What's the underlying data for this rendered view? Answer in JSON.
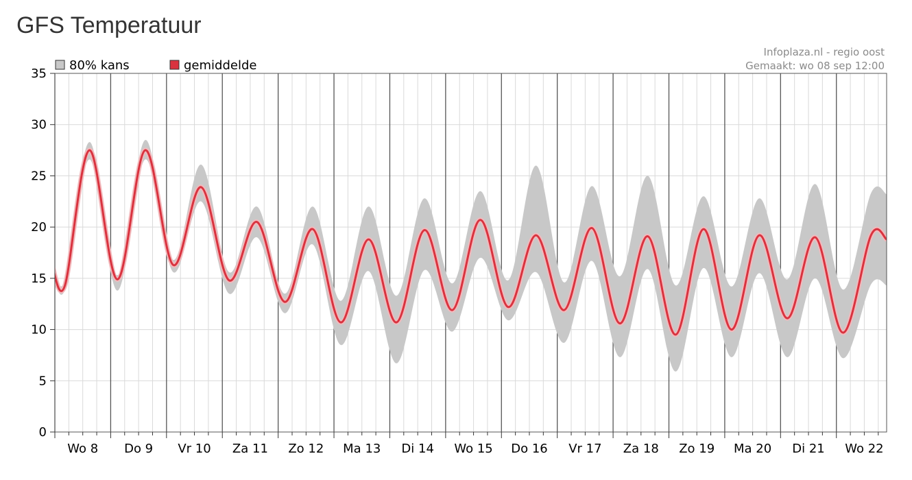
{
  "title": "GFS Temperatuur",
  "credit_line1": "Infoplaza.nl - regio oost",
  "credit_line2": "Gemaakt: wo 08 sep 12:00",
  "legend": [
    {
      "label": "80% kans",
      "color": "#c8c8c8"
    },
    {
      "label": "gemiddelde",
      "color": "#d9333f"
    }
  ],
  "chart_data": {
    "type": "area",
    "title": "GFS Temperatuur",
    "xlabel": "",
    "ylabel": "",
    "ylim": [
      0,
      35
    ],
    "yticks": [
      0,
      5,
      10,
      15,
      20,
      25,
      30,
      35
    ],
    "x_unit": "days from Wo 8 00:00",
    "xlim": [
      0,
      14.9
    ],
    "day_labels": [
      "Wo 8",
      "Do 9",
      "Vr 10",
      "Za 11",
      "Zo 12",
      "Ma 13",
      "Di 14",
      "Wo 15",
      "Do 16",
      "Vr 17",
      "Za 18",
      "Zo 19",
      "Ma 20",
      "Di 21",
      "Wo 22"
    ],
    "grid": true,
    "series": [
      {
        "name": "gemiddelde",
        "color": "#d9333f",
        "points": [
          [
            -0.05,
            16.3
          ],
          [
            0.18,
            14.3
          ],
          [
            0.62,
            27.5
          ],
          [
            1.12,
            14.9
          ],
          [
            1.62,
            27.5
          ],
          [
            2.12,
            16.3
          ],
          [
            2.62,
            23.9
          ],
          [
            3.12,
            14.8
          ],
          [
            3.62,
            20.5
          ],
          [
            4.12,
            12.7
          ],
          [
            4.62,
            19.8
          ],
          [
            5.12,
            10.7
          ],
          [
            5.62,
            18.8
          ],
          [
            6.12,
            10.7
          ],
          [
            6.62,
            19.7
          ],
          [
            7.12,
            11.9
          ],
          [
            7.62,
            20.7
          ],
          [
            8.12,
            12.2
          ],
          [
            8.62,
            19.2
          ],
          [
            9.12,
            11.9
          ],
          [
            9.62,
            19.9
          ],
          [
            10.12,
            10.6
          ],
          [
            10.62,
            19.1
          ],
          [
            11.12,
            9.5
          ],
          [
            11.62,
            19.8
          ],
          [
            12.12,
            10.0
          ],
          [
            12.62,
            19.2
          ],
          [
            13.12,
            11.1
          ],
          [
            13.62,
            19.0
          ],
          [
            14.12,
            9.7
          ],
          [
            14.62,
            19.2
          ],
          [
            14.9,
            18.8
          ]
        ]
      },
      {
        "name": "80% kans",
        "color": "#c8c8c8",
        "points": [
          [
            -0.05,
            16.6,
            15.9
          ],
          [
            0.18,
            14.8,
            13.9
          ],
          [
            0.62,
            28.3,
            26.6
          ],
          [
            1.12,
            15.3,
            13.8
          ],
          [
            1.62,
            28.5,
            26.6
          ],
          [
            2.12,
            16.8,
            15.6
          ],
          [
            2.62,
            26.1,
            22.5
          ],
          [
            3.12,
            15.6,
            13.5
          ],
          [
            3.62,
            22.0,
            19.0
          ],
          [
            4.12,
            13.5,
            11.6
          ],
          [
            4.62,
            22.0,
            18.3
          ],
          [
            5.12,
            12.8,
            8.5
          ],
          [
            5.62,
            22.0,
            15.7
          ],
          [
            6.12,
            13.3,
            6.7
          ],
          [
            6.62,
            22.8,
            15.8
          ],
          [
            7.12,
            14.5,
            9.8
          ],
          [
            7.62,
            23.5,
            17.0
          ],
          [
            8.12,
            14.8,
            10.9
          ],
          [
            8.62,
            26.0,
            15.6
          ],
          [
            9.12,
            14.6,
            8.7
          ],
          [
            9.62,
            24.0,
            16.7
          ],
          [
            10.12,
            15.2,
            7.3
          ],
          [
            10.62,
            25.0,
            15.9
          ],
          [
            11.12,
            14.3,
            5.9
          ],
          [
            11.62,
            23.0,
            16.0
          ],
          [
            12.12,
            14.2,
            7.3
          ],
          [
            12.62,
            22.8,
            15.5
          ],
          [
            13.12,
            14.9,
            7.3
          ],
          [
            13.62,
            24.2,
            15.0
          ],
          [
            14.12,
            13.9,
            7.2
          ],
          [
            14.62,
            23.3,
            14.4
          ],
          [
            14.9,
            23.2,
            14.3
          ]
        ]
      }
    ]
  }
}
